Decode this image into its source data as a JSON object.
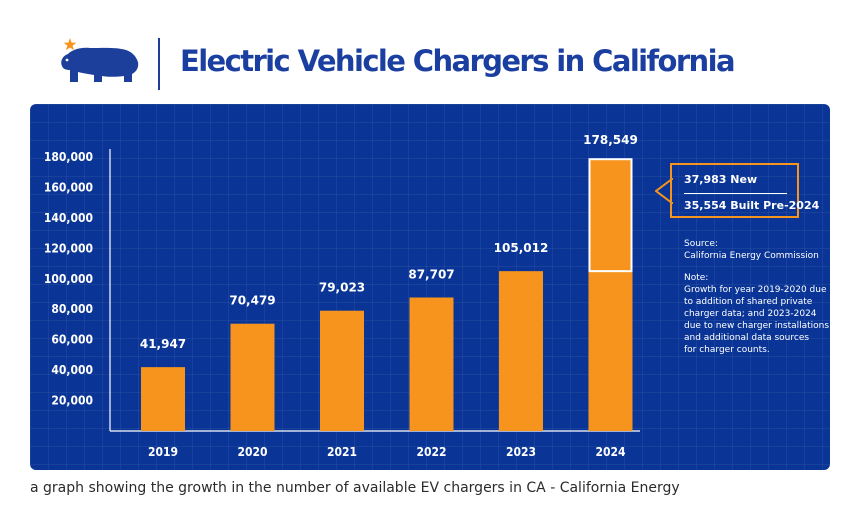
{
  "header": {
    "title": "Electric Vehicle Chargers in California",
    "logo_icon": "california-bear-star-icon"
  },
  "colors": {
    "panel": "#0a3596",
    "bar": "#f7941d",
    "title": "#1b3fa0",
    "text": "#ffffff"
  },
  "chart_data": {
    "type": "bar",
    "title": "Electric Vehicle Chargers in California",
    "categories": [
      "2019",
      "2020",
      "2021",
      "2022",
      "2023",
      "2024"
    ],
    "values": [
      41947,
      70479,
      79023,
      87707,
      105012,
      178549
    ],
    "value_labels": [
      "41,947",
      "70,479",
      "79,023",
      "87,707",
      "105,012",
      "178,549"
    ],
    "stacked_2024": {
      "base": 105012,
      "new": 37983,
      "built_pre_2024": 35554
    },
    "yticks": [
      20000,
      40000,
      60000,
      80000,
      100000,
      120000,
      140000,
      160000,
      180000
    ],
    "ytick_labels": [
      "20,000",
      "40,000",
      "60,000",
      "80,000",
      "100,000",
      "120,000",
      "140,000",
      "160,000",
      "180,000"
    ],
    "ylim": [
      0,
      180000
    ],
    "xlabel": "",
    "ylabel": "",
    "grid": false,
    "legend": "none"
  },
  "callout": {
    "line1": "37,983 New",
    "line2": "35,554 Built Pre-2024"
  },
  "source": {
    "label": "Source:",
    "text": "California Energy Commission"
  },
  "note": {
    "label": "Note:",
    "lines": [
      "Growth for year 2019-2020 due",
      "to addition of shared private",
      "charger data; and 2023-2024",
      "due to new charger installations",
      "and additional data sources",
      "for charger counts."
    ]
  },
  "caption": "a graph showing the growth in the number of available EV chargers in CA - California Energy"
}
